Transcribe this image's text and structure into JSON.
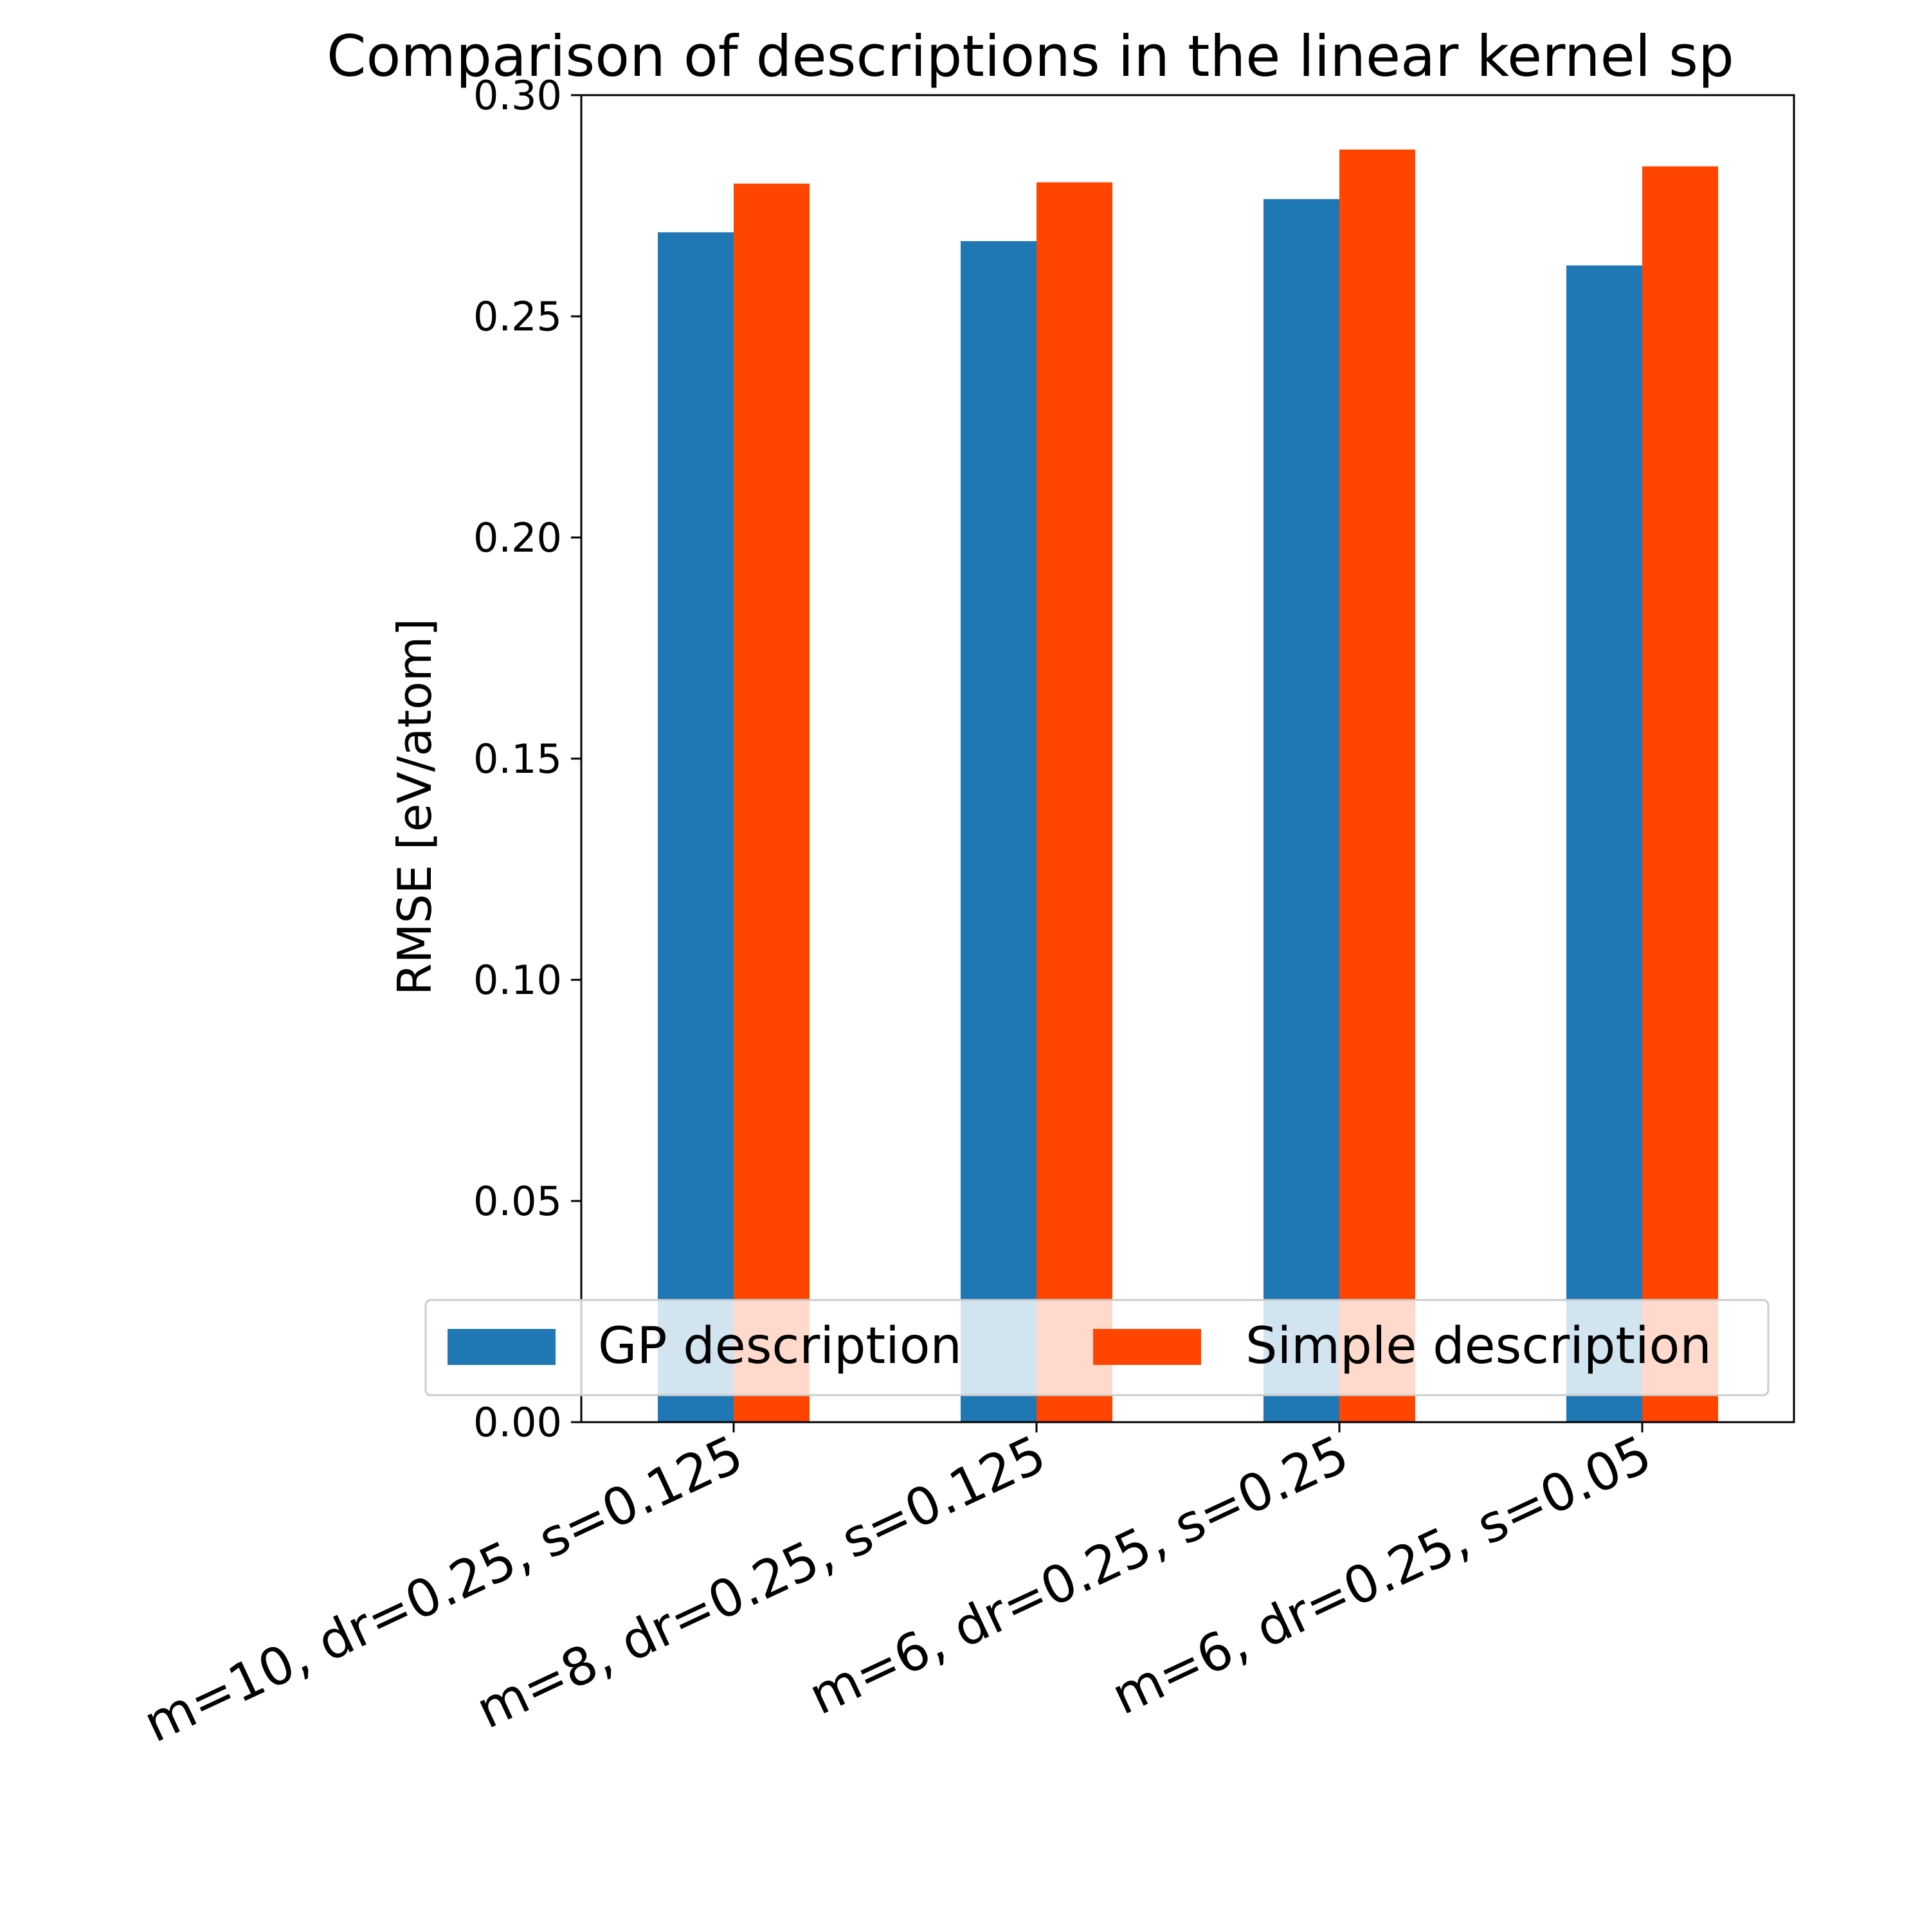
{
  "chart_data": {
    "type": "bar",
    "title": "Comparison of descriptions in the linear kernel sp",
    "xlabel": "",
    "ylabel": "RMSE [eV/atom]",
    "ylim": [
      0,
      0.3
    ],
    "yticks": [
      "0.00",
      "0.05",
      "0.10",
      "0.15",
      "0.20",
      "0.25",
      "0.30"
    ],
    "categories": [
      "m=10, dr=0.25, s=0.125",
      "m=8, dr=0.25, s=0.125",
      "m=6, dr=0.25, s=0.25",
      "m=6, dr=0.25, s=0.05"
    ],
    "series": [
      {
        "name": "GP description",
        "color": "#1f77b4",
        "values": [
          0.269,
          0.267,
          0.2765,
          0.2615
        ]
      },
      {
        "name": "Simple description",
        "color": "#ff4500",
        "values": [
          0.28,
          0.2803,
          0.2877,
          0.2839
        ]
      }
    ],
    "grid": false,
    "legend": {
      "placement": "lower-center",
      "columns": 2
    }
  }
}
